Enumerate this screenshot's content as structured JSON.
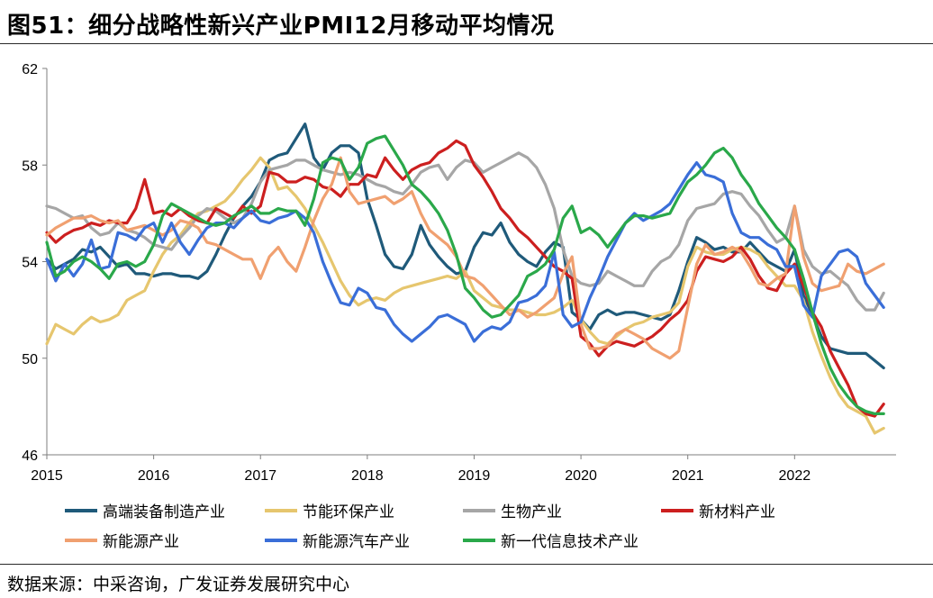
{
  "title": "图51：细分战略性新兴产业PMI12月移动平均情况",
  "source": "数据来源：中采咨询，广发证券发展研究中心",
  "chart_data": {
    "type": "line",
    "title": "图51：细分战略性新兴产业PMI12月移动平均情况",
    "xlabel": "",
    "ylabel": "",
    "xlim": [
      2015,
      2022.95
    ],
    "ylim": [
      46,
      62
    ],
    "yticks": [
      46,
      50,
      54,
      58,
      62
    ],
    "xticks": [
      "2015",
      "2016",
      "2017",
      "2018",
      "2019",
      "2020",
      "2021",
      "2022"
    ],
    "grid": false,
    "legend_position": "bottom",
    "x_step_months": 1,
    "x_start": 2015.0,
    "series": [
      {
        "name": "高端装备制造产业",
        "color": "#1f5a7a",
        "values": [
          54.1,
          53.7,
          53.9,
          54.1,
          54.5,
          54.4,
          54.6,
          54.2,
          53.8,
          53.9,
          53.5,
          53.5,
          53.4,
          53.5,
          53.5,
          53.4,
          53.4,
          53.3,
          53.6,
          54.3,
          55.1,
          55.8,
          56.3,
          56.7,
          57.3,
          58.2,
          58.4,
          58.5,
          59.1,
          59.7,
          58.3,
          57.8,
          58.5,
          58.8,
          58.8,
          58.5,
          56.6,
          55.5,
          54.3,
          53.8,
          53.7,
          54.3,
          55.5,
          54.7,
          54.2,
          53.8,
          53.5,
          53.6,
          54.6,
          55.2,
          55.1,
          55.6,
          54.8,
          54.3,
          54.0,
          53.8,
          54.4,
          54.8,
          54.6,
          51.9,
          51.6,
          51.2,
          51.8,
          52.0,
          51.8,
          51.9,
          51.9,
          51.8,
          51.7,
          51.6,
          51.8,
          52.8,
          54.0,
          55.0,
          54.8,
          54.5,
          54.6,
          54.4,
          54.4,
          54.8,
          54.4,
          54.0,
          53.8,
          53.6,
          54.5,
          52.6,
          51.8,
          50.9,
          50.4,
          50.3,
          50.2,
          50.2,
          50.2,
          49.9,
          49.6
        ]
      },
      {
        "name": "节能环保产业",
        "color": "#e6c66e",
        "values": [
          50.6,
          51.4,
          51.2,
          51.0,
          51.4,
          51.7,
          51.5,
          51.6,
          51.8,
          52.4,
          52.6,
          52.8,
          53.6,
          54.3,
          54.8,
          55.1,
          55.6,
          56.0,
          56.1,
          56.3,
          56.5,
          56.9,
          57.4,
          57.8,
          58.3,
          57.9,
          57.0,
          57.1,
          56.7,
          56.2,
          55.5,
          54.8,
          54.0,
          53.2,
          52.6,
          52.2,
          52.4,
          52.5,
          52.4,
          52.7,
          52.9,
          53.0,
          53.1,
          53.2,
          53.3,
          53.4,
          53.3,
          53.6,
          52.8,
          52.5,
          52.2,
          52.1,
          52.0,
          52.0,
          51.9,
          51.8,
          51.8,
          51.9,
          52.1,
          52.4,
          51.6,
          51.1,
          50.7,
          50.6,
          50.9,
          51.2,
          51.4,
          51.5,
          51.7,
          51.8,
          51.9,
          52.3,
          53.8,
          54.6,
          54.4,
          54.3,
          54.3,
          54.5,
          54.6,
          54.5,
          54.3,
          53.8,
          53.4,
          53.0,
          53.0,
          52.4,
          51.1,
          50.1,
          49.2,
          48.5,
          48.0,
          47.8,
          47.6,
          46.9,
          47.1
        ]
      },
      {
        "name": "生物产业",
        "color": "#a6a6a6",
        "values": [
          56.3,
          56.2,
          56.0,
          55.8,
          55.9,
          55.4,
          55.1,
          55.2,
          55.6,
          55.3,
          55.2,
          55.0,
          54.7,
          54.6,
          54.5,
          55.0,
          55.4,
          55.9,
          56.2,
          56.1,
          55.8,
          55.6,
          55.8,
          56.4,
          57.3,
          57.8,
          57.9,
          58.0,
          58.2,
          58.2,
          58.0,
          57.8,
          57.7,
          57.6,
          57.7,
          57.6,
          57.4,
          57.2,
          57.1,
          56.9,
          56.8,
          57.2,
          57.7,
          57.9,
          58.0,
          57.4,
          57.9,
          58.2,
          58.1,
          57.7,
          57.9,
          58.1,
          58.3,
          58.5,
          58.3,
          57.9,
          57.2,
          56.2,
          54.5,
          53.4,
          53.1,
          53.0,
          53.1,
          53.6,
          53.4,
          53.2,
          53.0,
          53.0,
          53.6,
          54.0,
          54.2,
          54.7,
          55.7,
          56.2,
          56.3,
          56.4,
          56.8,
          56.9,
          56.8,
          56.3,
          55.9,
          55.3,
          54.8,
          55.0,
          56.3,
          54.5,
          53.8,
          53.5,
          53.6,
          53.3,
          53.0,
          52.4,
          52.0,
          52.0,
          52.7
        ]
      },
      {
        "name": "新材料产业",
        "color": "#cc1f1f",
        "values": [
          55.2,
          54.8,
          55.1,
          55.3,
          55.4,
          55.6,
          55.5,
          55.7,
          55.6,
          55.6,
          56.2,
          57.4,
          56.0,
          56.1,
          55.9,
          56.2,
          55.9,
          55.7,
          55.6,
          56.2,
          56.0,
          55.8,
          56.3,
          56.0,
          56.3,
          57.7,
          57.6,
          57.3,
          57.3,
          57.5,
          57.4,
          57.1,
          57.0,
          56.7,
          57.2,
          57.2,
          57.6,
          57.5,
          58.3,
          57.8,
          57.4,
          57.8,
          58.0,
          58.1,
          58.5,
          58.7,
          59.0,
          58.8,
          58.0,
          57.5,
          56.9,
          56.2,
          55.8,
          55.3,
          55.0,
          54.6,
          54.2,
          53.8,
          53.6,
          53.3,
          50.9,
          50.6,
          50.1,
          50.5,
          50.7,
          50.6,
          50.5,
          50.7,
          50.9,
          51.2,
          51.6,
          51.9,
          52.4,
          53.6,
          54.2,
          54.1,
          54.0,
          54.2,
          54.6,
          54.1,
          53.4,
          52.9,
          52.8,
          53.5,
          53.9,
          53.0,
          51.9,
          51.3,
          50.3,
          49.6,
          48.9,
          48.0,
          47.7,
          47.6,
          48.1
        ]
      },
      {
        "name": "新能源产业",
        "color": "#f0a070",
        "values": [
          55.1,
          55.4,
          55.6,
          55.8,
          55.8,
          55.9,
          55.7,
          55.6,
          55.7,
          55.3,
          55.4,
          55.5,
          55.3,
          55.1,
          55.3,
          55.7,
          55.6,
          55.4,
          54.8,
          54.7,
          54.5,
          54.3,
          54.1,
          54.1,
          53.3,
          54.2,
          54.6,
          54.0,
          53.6,
          54.6,
          55.7,
          56.6,
          57.2,
          58.3,
          56.9,
          56.4,
          56.5,
          56.6,
          56.7,
          56.4,
          56.6,
          56.9,
          56.0,
          55.3,
          55.0,
          54.7,
          54.2,
          53.4,
          53.3,
          53.0,
          52.6,
          52.2,
          51.8,
          52.0,
          51.7,
          51.9,
          52.2,
          52.5,
          53.5,
          54.2,
          51.4,
          50.4,
          50.4,
          50.5,
          51.0,
          51.2,
          51.0,
          50.8,
          50.4,
          50.2,
          50.0,
          50.3,
          52.1,
          53.9,
          54.7,
          54.3,
          54.4,
          54.6,
          54.4,
          53.8,
          53.1,
          53.0,
          53.3,
          53.5,
          56.3,
          54.2,
          53.1,
          52.8,
          52.9,
          53.0,
          53.9,
          53.6,
          53.5,
          53.7,
          53.9
        ]
      },
      {
        "name": "新能源汽车产业",
        "color": "#3a6ed8",
        "values": [
          54.1,
          53.2,
          53.9,
          53.4,
          53.9,
          54.9,
          53.7,
          53.8,
          55.2,
          55.1,
          54.9,
          55.4,
          55.6,
          54.8,
          55.6,
          54.8,
          54.3,
          54.9,
          55.4,
          55.6,
          55.6,
          55.4,
          55.8,
          56.1,
          55.7,
          55.6,
          55.8,
          55.9,
          56.1,
          55.8,
          55.2,
          54.0,
          53.1,
          52.3,
          52.2,
          52.9,
          52.7,
          52.1,
          52.0,
          51.4,
          51.0,
          50.7,
          51.0,
          51.3,
          51.7,
          51.8,
          51.6,
          51.4,
          50.7,
          51.1,
          51.3,
          51.2,
          51.5,
          52.3,
          52.4,
          52.6,
          53.0,
          54.4,
          51.8,
          51.3,
          51.5,
          52.5,
          53.3,
          54.2,
          54.9,
          55.6,
          56.0,
          55.7,
          55.9,
          56.1,
          56.4,
          57.0,
          57.6,
          58.1,
          57.6,
          57.5,
          57.3,
          56.0,
          55.2,
          55.0,
          55.0,
          54.7,
          54.5,
          53.8,
          53.8,
          52.2,
          51.7,
          53.4,
          53.9,
          54.4,
          54.5,
          54.2,
          53.1,
          52.6,
          52.1
        ]
      },
      {
        "name": "新一代信息技术产业",
        "color": "#2aa84a",
        "values": [
          54.8,
          53.4,
          53.6,
          54.0,
          54.2,
          54.0,
          53.7,
          53.3,
          53.9,
          54.0,
          53.8,
          54.0,
          54.7,
          55.9,
          56.4,
          56.2,
          56.0,
          55.8,
          55.6,
          55.5,
          55.6,
          55.9,
          56.1,
          56.3,
          56.0,
          56.0,
          56.2,
          56.1,
          56.1,
          55.5,
          56.6,
          58.1,
          58.3,
          58.2,
          57.4,
          57.9,
          58.9,
          59.1,
          59.2,
          58.6,
          58.0,
          57.2,
          56.9,
          56.5,
          56.0,
          55.3,
          54.3,
          52.9,
          52.5,
          52.0,
          51.7,
          51.8,
          52.2,
          52.6,
          53.4,
          53.6,
          53.9,
          54.5,
          55.8,
          56.3,
          55.2,
          55.4,
          55.1,
          54.6,
          55.1,
          55.6,
          55.9,
          55.9,
          55.8,
          55.9,
          56.0,
          56.7,
          57.3,
          57.6,
          58.0,
          58.5,
          58.7,
          58.3,
          57.6,
          57.1,
          56.4,
          55.9,
          55.4,
          55.0,
          54.5,
          53.3,
          51.9,
          50.6,
          49.6,
          48.9,
          48.4,
          48.0,
          47.8,
          47.7,
          47.7
        ]
      }
    ]
  }
}
